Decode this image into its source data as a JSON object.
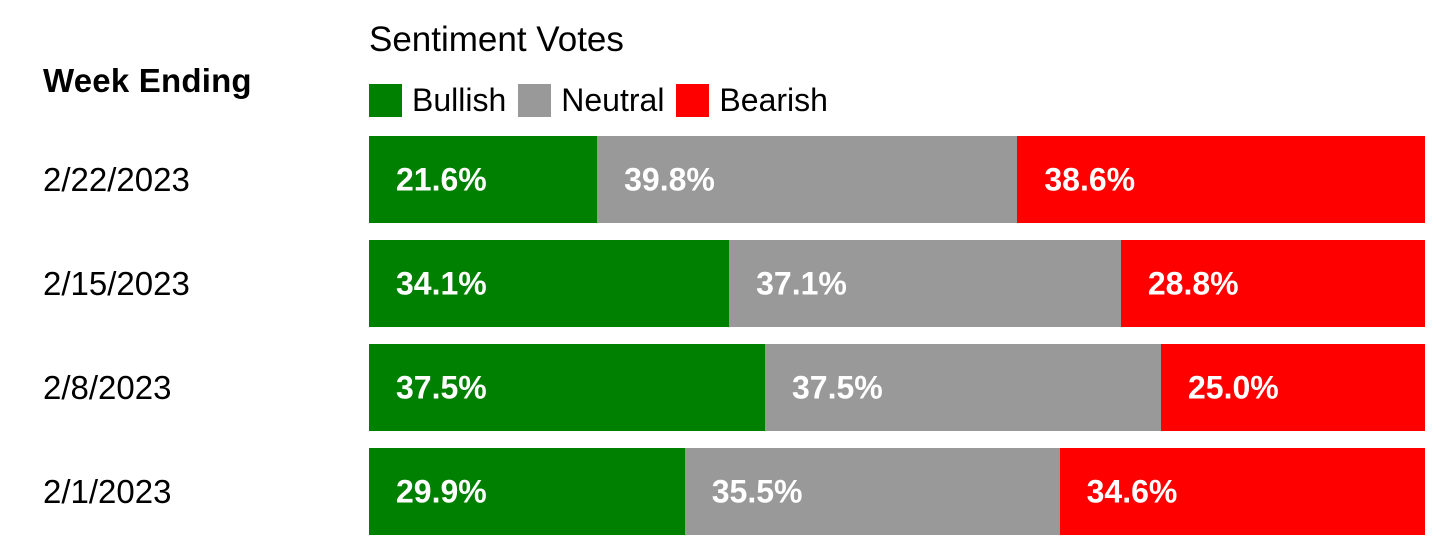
{
  "chart_data": {
    "type": "bar",
    "orientation": "horizontal",
    "stacked": true,
    "normalized": true,
    "title": "Sentiment Votes",
    "category_header": "Week Ending",
    "categories": [
      "2/22/2023",
      "2/15/2023",
      "2/8/2023",
      "2/1/2023"
    ],
    "series": [
      {
        "name": "Bullish",
        "color": "#008000",
        "values": [
          21.6,
          34.1,
          37.5,
          29.9
        ],
        "labels": [
          "21.6%",
          "34.1%",
          "37.5%",
          "29.9%"
        ]
      },
      {
        "name": "Neutral",
        "color": "#999999",
        "values": [
          39.8,
          37.1,
          37.5,
          35.5
        ],
        "labels": [
          "39.8%",
          "37.1%",
          "37.5%",
          "35.5%"
        ]
      },
      {
        "name": "Bearish",
        "color": "#ff0000",
        "values": [
          38.6,
          28.8,
          25.0,
          34.6
        ],
        "labels": [
          "38.6%",
          "28.8%",
          "25.0%",
          "34.6%"
        ]
      }
    ],
    "xlim": [
      0,
      100
    ],
    "grid": false,
    "legend_position": "top"
  }
}
